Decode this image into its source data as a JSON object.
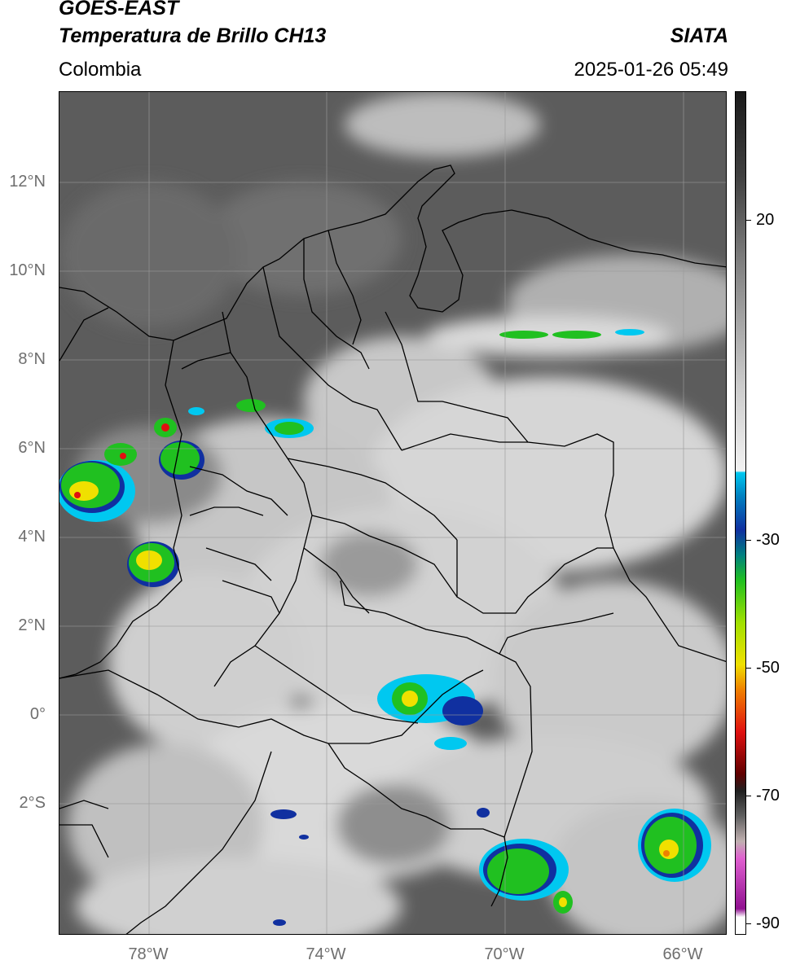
{
  "header": {
    "title_line1": "GOES-EAST",
    "title_line2": "Temperatura de Brillo CH13",
    "agency": "SIATA",
    "region": "Colombia",
    "datetime": "2025-01-26 05:49"
  },
  "map": {
    "lat_labels": [
      "12°N",
      "10°N",
      "8°N",
      "6°N",
      "4°N",
      "2°N",
      "0°",
      "2°S"
    ],
    "lon_labels": [
      "78°W",
      "74°W",
      "70°W",
      "66°W"
    ],
    "extent": {
      "lon_min": -80,
      "lon_max": -65,
      "lat_min": -5,
      "lat_max": 14
    }
  },
  "colorbar": {
    "tick_labels": [
      "20",
      "-30",
      "-50",
      "-70",
      "-90"
    ],
    "tick_values": [
      20,
      -30,
      -50,
      -70,
      -90
    ],
    "range": [
      -92,
      40
    ],
    "colors": {
      "warm": "#1a1a1a",
      "mid": "#8a8a8a",
      "cold_white": "#f2f2f2",
      "cyan": "#00c8f0",
      "blue": "#1030a0",
      "green": "#20c020",
      "yellow": "#f0e000",
      "orange": "#f08000",
      "red": "#e01010",
      "darkred": "#600000",
      "pink": "#e060d0",
      "purple": "#901090"
    }
  }
}
